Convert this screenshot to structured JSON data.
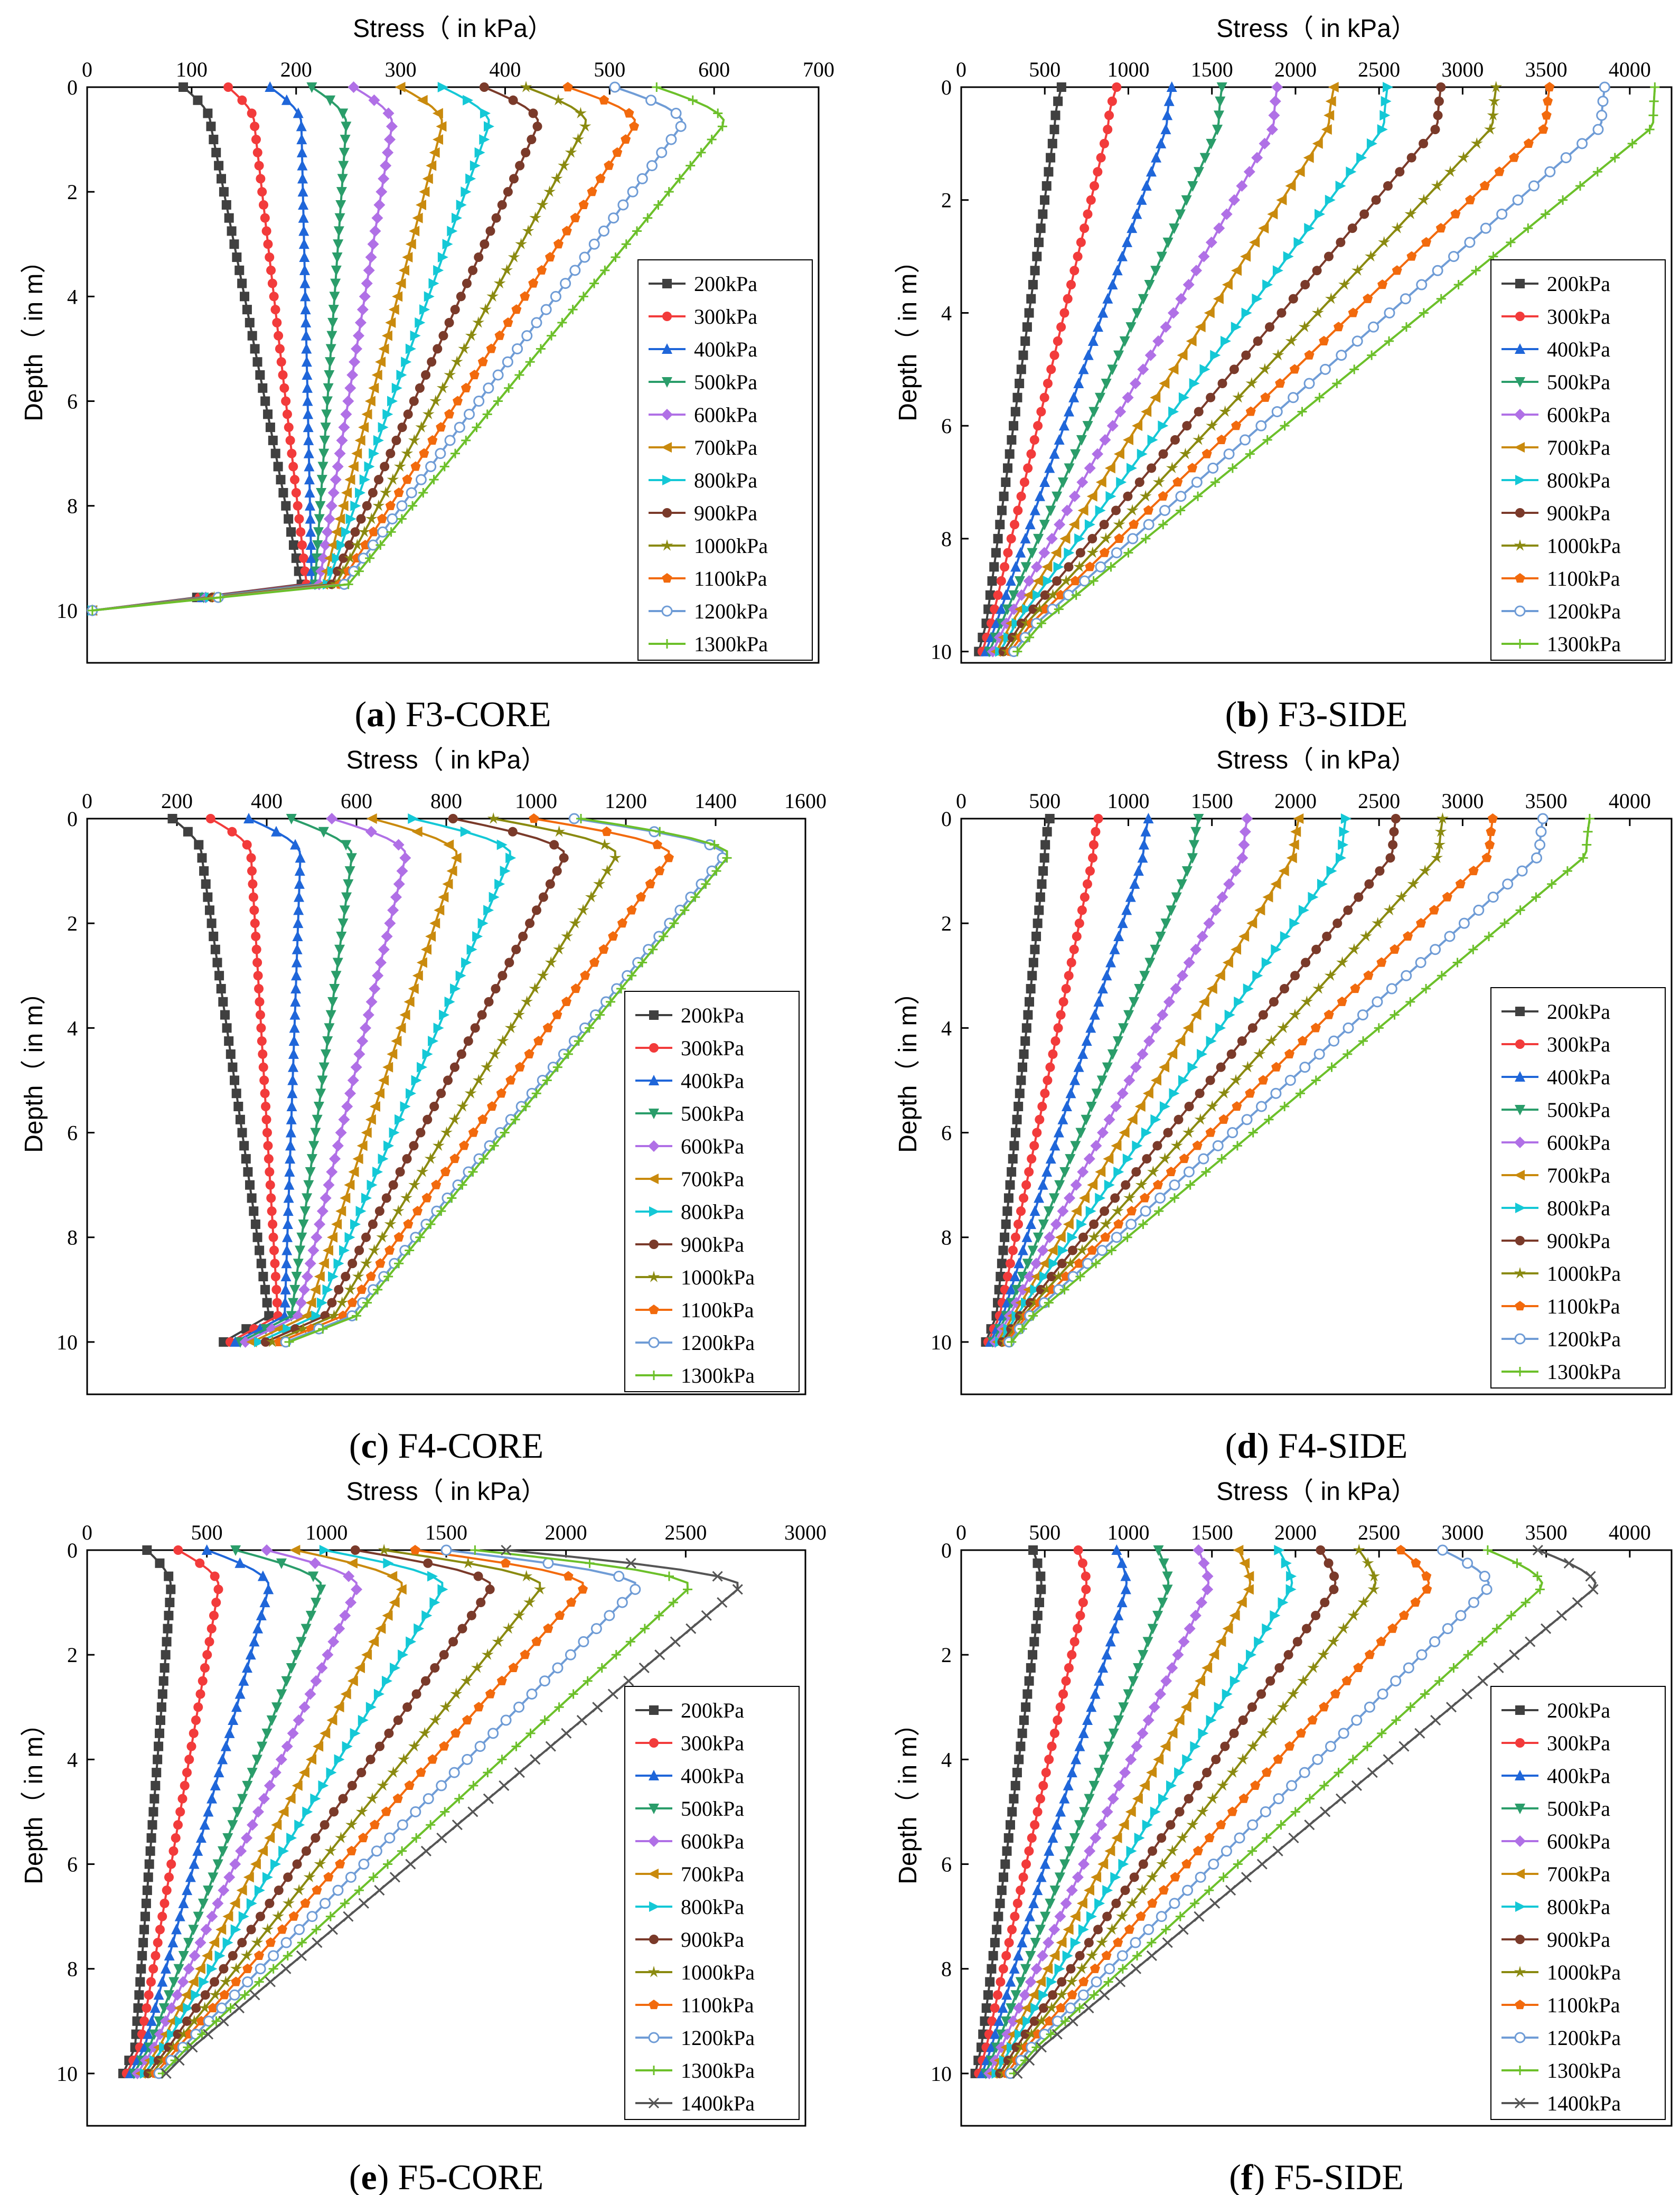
{
  "colors": [
    "#404040",
    "#f23b3b",
    "#1f66d9",
    "#2a9d6a",
    "#b070e6",
    "#c98a0d",
    "#14c8d6",
    "#7a3a2a",
    "#8a8a10",
    "#f26a0d",
    "#6f9cd6",
    "#6cc02a",
    "#555555"
  ],
  "markers": [
    "square",
    "circle",
    "triangle",
    "triangle-down",
    "diamond",
    "triangle-left",
    "triangle-right",
    "circle",
    "star",
    "pentagon",
    "hexagon",
    "plus",
    "x"
  ],
  "chart_data": [
    {
      "id": "a",
      "caption_letter": "a",
      "caption_text": "F3-CORE",
      "type": "line",
      "title": "",
      "xlabel": "Stress（ in kPa）",
      "ylabel": "Depth（ in m）",
      "xlim": [
        0,
        700
      ],
      "ylim": [
        0,
        11
      ],
      "xticks": [
        "0",
        "100",
        "200",
        "300",
        "400",
        "500",
        "600",
        "700"
      ],
      "yticks": [
        "0",
        "2",
        "4",
        "6",
        "8",
        "10"
      ],
      "legend_position": "middle-right",
      "series": [
        {
          "name": "200kPa",
          "top": 92,
          "peak": 118,
          "bottom": 205
        },
        {
          "name": "300kPa",
          "top": 135,
          "peak": 160,
          "bottom": 210
        },
        {
          "name": "400kPa",
          "top": 175,
          "peak": 205,
          "bottom": 215
        },
        {
          "name": "500kPa",
          "top": 215,
          "peak": 248,
          "bottom": 218
        },
        {
          "name": "600kPa",
          "top": 255,
          "peak": 292,
          "bottom": 222
        },
        {
          "name": "700kPa",
          "top": 300,
          "peak": 340,
          "bottom": 226
        },
        {
          "name": "800kPa",
          "top": 340,
          "peak": 385,
          "bottom": 230
        },
        {
          "name": "900kPa",
          "top": 380,
          "peak": 432,
          "bottom": 234
        },
        {
          "name": "1000kPa",
          "top": 420,
          "peak": 478,
          "bottom": 238
        },
        {
          "name": "1100kPa",
          "top": 460,
          "peak": 525,
          "bottom": 242
        },
        {
          "name": "1200kPa",
          "top": 505,
          "peak": 570,
          "bottom": 246
        },
        {
          "name": "1300kPa",
          "top": 545,
          "peak": 610,
          "bottom": 250
        }
      ]
    },
    {
      "id": "b",
      "caption_letter": "b",
      "caption_text": "F3-SIDE",
      "type": "line",
      "title": "",
      "xlabel": "Stress（ in kPa）",
      "ylabel": "Depth（ in m）",
      "xlim": [
        0,
        4250
      ],
      "ylim": [
        0,
        10.2
      ],
      "xticks": [
        "0",
        "500",
        "1000",
        "1500",
        "2000",
        "2500",
        "3000",
        "3500",
        "4000"
      ],
      "yticks": [
        "0",
        "2",
        "4",
        "6",
        "8",
        "10"
      ],
      "legend_position": "middle-right",
      "series": [
        {
          "name": "200kPa",
          "top": 600,
          "peak": 560,
          "bottom": 150
        },
        {
          "name": "300kPa",
          "top": 930,
          "peak": 880,
          "bottom": 180
        },
        {
          "name": "400kPa",
          "top": 1260,
          "peak": 1230,
          "bottom": 210
        },
        {
          "name": "500kPa",
          "top": 1560,
          "peak": 1540,
          "bottom": 240
        },
        {
          "name": "600kPa",
          "top": 1890,
          "peak": 1870,
          "bottom": 270
        },
        {
          "name": "700kPa",
          "top": 2230,
          "peak": 2200,
          "bottom": 300
        },
        {
          "name": "800kPa",
          "top": 2550,
          "peak": 2530,
          "bottom": 330
        },
        {
          "name": "900kPa",
          "top": 2870,
          "peak": 2850,
          "bottom": 360
        },
        {
          "name": "1000kPa",
          "top": 3200,
          "peak": 3180,
          "bottom": 390
        },
        {
          "name": "1100kPa",
          "top": 3520,
          "peak": 3500,
          "bottom": 420
        },
        {
          "name": "1200kPa",
          "top": 3850,
          "peak": 3830,
          "bottom": 450
        },
        {
          "name": "1300kPa",
          "top": 4150,
          "peak": 4140,
          "bottom": 480
        }
      ]
    },
    {
      "id": "c",
      "caption_letter": "c",
      "caption_text": "F4-CORE",
      "type": "line",
      "title": "",
      "xlabel": "Stress（ in kPa）",
      "ylabel": "Depth（ in m）",
      "xlim": [
        0,
        1600
      ],
      "ylim": [
        0,
        11
      ],
      "xticks": [
        "0",
        "200",
        "400",
        "600",
        "800",
        "1000",
        "1200",
        "1400",
        "1600"
      ],
      "yticks": [
        "0",
        "2",
        "4",
        "6",
        "8",
        "10"
      ],
      "legend_position": "middle-right",
      "series": [
        {
          "name": "200kPa",
          "top": 190,
          "peak": 255,
          "bottom": 405
        },
        {
          "name": "300kPa",
          "top": 275,
          "peak": 365,
          "bottom": 425
        },
        {
          "name": "400kPa",
          "top": 360,
          "peak": 475,
          "bottom": 440
        },
        {
          "name": "500kPa",
          "top": 455,
          "peak": 590,
          "bottom": 455
        },
        {
          "name": "600kPa",
          "top": 545,
          "peak": 710,
          "bottom": 470
        },
        {
          "name": "700kPa",
          "top": 635,
          "peak": 825,
          "bottom": 490
        },
        {
          "name": "800kPa",
          "top": 725,
          "peak": 945,
          "bottom": 510
        },
        {
          "name": "900kPa",
          "top": 815,
          "peak": 1065,
          "bottom": 530
        },
        {
          "name": "1000kPa",
          "top": 905,
          "peak": 1180,
          "bottom": 550
        },
        {
          "name": "1100kPa",
          "top": 995,
          "peak": 1300,
          "bottom": 570
        },
        {
          "name": "1200kPa",
          "top": 1085,
          "peak": 1420,
          "bottom": 590
        },
        {
          "name": "1300kPa",
          "top": 1100,
          "peak": 1430,
          "bottom": 600
        }
      ]
    },
    {
      "id": "d",
      "caption_letter": "d",
      "caption_text": "F4-SIDE",
      "type": "line",
      "title": "",
      "xlabel": "Stress（ in kPa）",
      "ylabel": "Depth（ in m）",
      "xlim": [
        0,
        4250
      ],
      "ylim": [
        0,
        11
      ],
      "xticks": [
        "0",
        "500",
        "1000",
        "1500",
        "2000",
        "2500",
        "3000",
        "3500",
        "4000"
      ],
      "yticks": [
        "0",
        "2",
        "4",
        "6",
        "8",
        "10"
      ],
      "legend_position": "bottom-right",
      "series": [
        {
          "name": "200kPa",
          "top": 530,
          "peak": 500,
          "bottom": 210
        },
        {
          "name": "300kPa",
          "top": 820,
          "peak": 790,
          "bottom": 230
        },
        {
          "name": "400kPa",
          "top": 1120,
          "peak": 1090,
          "bottom": 250
        },
        {
          "name": "500kPa",
          "top": 1420,
          "peak": 1390,
          "bottom": 270
        },
        {
          "name": "600kPa",
          "top": 1710,
          "peak": 1690,
          "bottom": 290
        },
        {
          "name": "700kPa",
          "top": 2020,
          "peak": 1990,
          "bottom": 310
        },
        {
          "name": "800kPa",
          "top": 2300,
          "peak": 2280,
          "bottom": 330
        },
        {
          "name": "900kPa",
          "top": 2600,
          "peak": 2580,
          "bottom": 350
        },
        {
          "name": "1000kPa",
          "top": 2880,
          "peak": 2860,
          "bottom": 370
        },
        {
          "name": "1100kPa",
          "top": 3180,
          "peak": 3160,
          "bottom": 390
        },
        {
          "name": "1200kPa",
          "top": 3480,
          "peak": 3460,
          "bottom": 410
        },
        {
          "name": "1300kPa",
          "top": 3760,
          "peak": 3740,
          "bottom": 430
        }
      ]
    },
    {
      "id": "e",
      "caption_letter": "e",
      "caption_text": "F5-CORE",
      "type": "line",
      "title": "",
      "xlabel": "Stress（ in kPa）",
      "ylabel": "Depth（ in m）",
      "xlim": [
        0,
        3000
      ],
      "ylim": [
        0,
        11
      ],
      "xticks": [
        "0",
        "500",
        "1000",
        "1500",
        "2000",
        "2500",
        "3000"
      ],
      "yticks": [
        "0",
        "2",
        "4",
        "6",
        "8",
        "10"
      ],
      "legend_position": "bottom-right",
      "series": [
        {
          "name": "200kPa",
          "top": 250,
          "peak": 350,
          "bottom": 200
        },
        {
          "name": "300kPa",
          "top": 380,
          "peak": 550,
          "bottom": 220
        },
        {
          "name": "400kPa",
          "top": 500,
          "peak": 760,
          "bottom": 240
        },
        {
          "name": "500kPa",
          "top": 620,
          "peak": 980,
          "bottom": 260
        },
        {
          "name": "600kPa",
          "top": 750,
          "peak": 1130,
          "bottom": 280
        },
        {
          "name": "700kPa",
          "top": 870,
          "peak": 1320,
          "bottom": 300
        },
        {
          "name": "800kPa",
          "top": 990,
          "peak": 1490,
          "bottom": 320
        },
        {
          "name": "900kPa",
          "top": 1120,
          "peak": 1690,
          "bottom": 340
        },
        {
          "name": "1000kPa",
          "top": 1240,
          "peak": 1900,
          "bottom": 360
        },
        {
          "name": "1100kPa",
          "top": 1370,
          "peak": 2080,
          "bottom": 380
        },
        {
          "name": "1200kPa",
          "top": 1500,
          "peak": 2300,
          "bottom": 400
        },
        {
          "name": "1300kPa",
          "top": 1620,
          "peak": 2520,
          "bottom": 420
        },
        {
          "name": "1400kPa",
          "top": 1750,
          "peak": 2730,
          "bottom": 440
        }
      ]
    },
    {
      "id": "f",
      "caption_letter": "f",
      "caption_text": "F5-SIDE",
      "type": "line",
      "title": "",
      "xlabel": "Stress（ in kPa）",
      "ylabel": "Depth（ in m）",
      "xlim": [
        0,
        4250
      ],
      "ylim": [
        0,
        11
      ],
      "xticks": [
        "0",
        "500",
        "1000",
        "1500",
        "2000",
        "2500",
        "3000",
        "3500",
        "4000"
      ],
      "yticks": [
        "0",
        "2",
        "4",
        "6",
        "8",
        "10"
      ],
      "legend_position": "bottom-right",
      "series": [
        {
          "name": "200kPa",
          "top": 430,
          "peak": 480,
          "bottom": 120
        },
        {
          "name": "300kPa",
          "top": 700,
          "peak": 750,
          "bottom": 150
        },
        {
          "name": "400kPa",
          "top": 930,
          "peak": 990,
          "bottom": 180
        },
        {
          "name": "500kPa",
          "top": 1180,
          "peak": 1240,
          "bottom": 210
        },
        {
          "name": "600kPa",
          "top": 1420,
          "peak": 1480,
          "bottom": 240
        },
        {
          "name": "700kPa",
          "top": 1660,
          "peak": 1730,
          "bottom": 270
        },
        {
          "name": "800kPa",
          "top": 1900,
          "peak": 1980,
          "bottom": 300
        },
        {
          "name": "900kPa",
          "top": 2150,
          "peak": 2240,
          "bottom": 330
        },
        {
          "name": "1000kPa",
          "top": 2380,
          "peak": 2480,
          "bottom": 360
        },
        {
          "name": "1100kPa",
          "top": 2630,
          "peak": 2800,
          "bottom": 390
        },
        {
          "name": "1200kPa",
          "top": 2880,
          "peak": 3160,
          "bottom": 420
        },
        {
          "name": "1300kPa",
          "top": 3150,
          "peak": 3480,
          "bottom": 450
        },
        {
          "name": "1400kPa",
          "top": 3450,
          "peak": 3800,
          "bottom": 480
        }
      ]
    }
  ]
}
